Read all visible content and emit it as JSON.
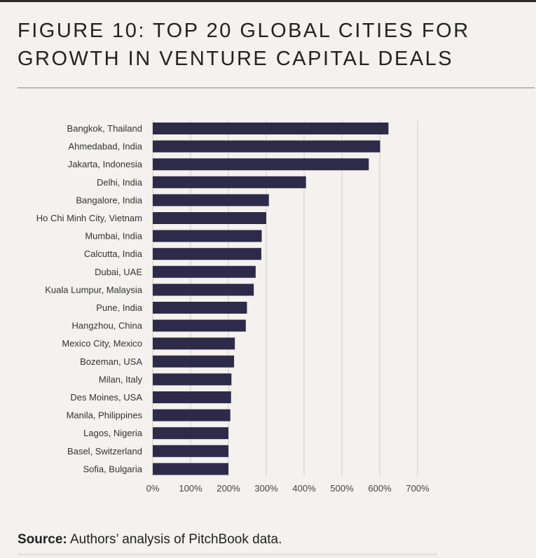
{
  "header": {
    "title_line1": "FIGURE 10: TOP 20 GLOBAL CITIES FOR",
    "title_line2": "GROWTH IN VENTURE CAPITAL DEALS"
  },
  "footer": {
    "source_label": "Source:",
    "source_text": " Authors’ analysis of PitchBook data."
  },
  "colors": {
    "bar": "#2d2a4a",
    "grid": "#d6d3d0",
    "background": "#f4f1ee"
  },
  "chart_data": {
    "type": "bar",
    "orientation": "horizontal",
    "title": "FIGURE 10: TOP 20 GLOBAL CITIES FOR GROWTH IN VENTURE CAPITAL DEALS",
    "xlabel": "",
    "ylabel": "",
    "xlim": [
      0,
      700
    ],
    "ticks": [
      0,
      100,
      200,
      300,
      400,
      500,
      600,
      700
    ],
    "tick_labels": [
      "0%",
      "100%",
      "200%",
      "300%",
      "400%",
      "500%",
      "600%",
      "700%"
    ],
    "grid": true,
    "categories": [
      "Bangkok, Thailand",
      "Ahmedabad, India",
      "Jakarta, Indonesia",
      "Delhi, India",
      "Bangalore, India",
      "Ho Chi Minh City, Vietnam",
      "Mumbai, India",
      "Calcutta, India",
      "Dubai, UAE",
      "Kuala Lumpur, Malaysia",
      "Pune, India",
      "Hangzhou, China",
      "Mexico City, Mexico",
      "Bozeman, USA",
      "Milan, Italy",
      "Des Moines, USA",
      "Manila, Philippines",
      "Lagos, Nigeria",
      "Basel, Switzerland",
      "Sofia, Bulgaria"
    ],
    "values": [
      623,
      601,
      571,
      405,
      307,
      300,
      288,
      287,
      272,
      267,
      249,
      246,
      217,
      215,
      208,
      207,
      205,
      200,
      200,
      200
    ]
  }
}
